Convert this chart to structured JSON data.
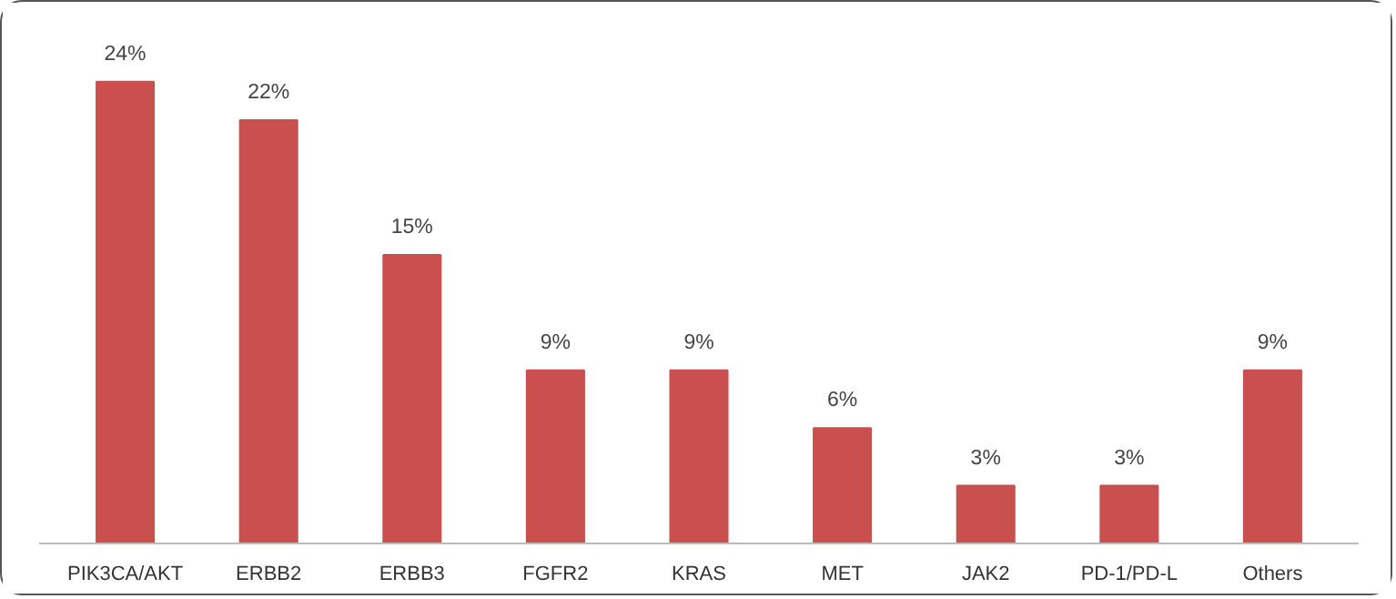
{
  "chart_data": {
    "type": "bar",
    "categories": [
      "PIK3CA/AKT",
      "ERBB2",
      "ERBB3",
      "FGFR2",
      "KRAS",
      "MET",
      "JAK2",
      "PD-1/PD-L",
      "Others"
    ],
    "values": [
      24,
      22,
      15,
      9,
      9,
      6,
      3,
      3,
      9
    ],
    "value_labels": [
      "24%",
      "22%",
      "15%",
      "9%",
      "9%",
      "6%",
      "3%",
      "3%",
      "9%"
    ],
    "color": "#c9504e"
  }
}
